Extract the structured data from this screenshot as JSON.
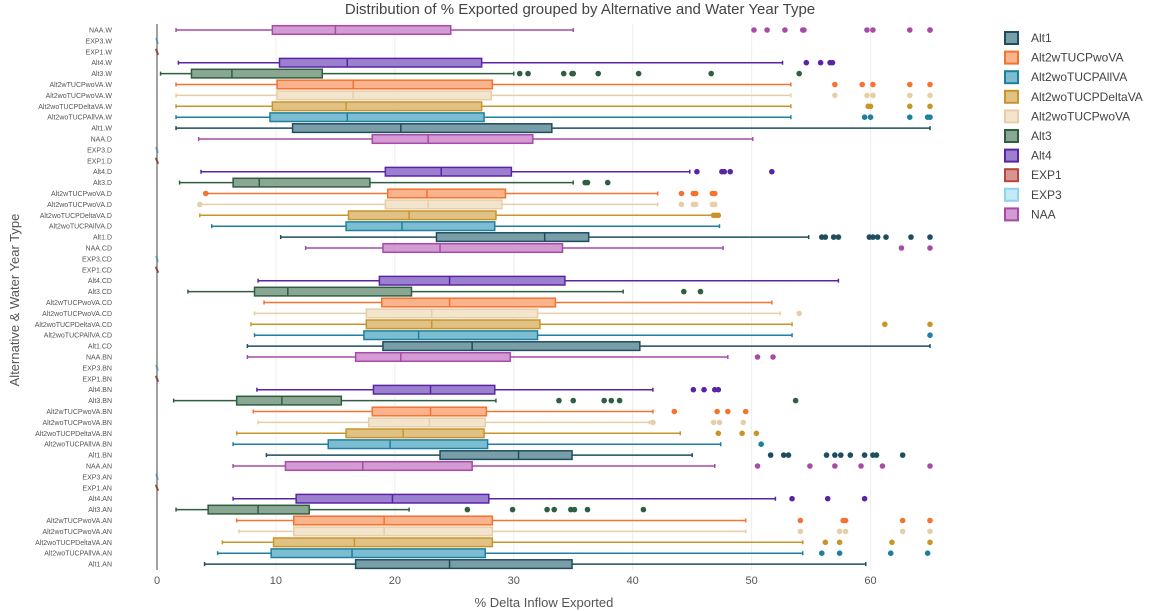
{
  "chart_data": {
    "type": "box",
    "orientation": "horizontal",
    "title": "Distribution of % Exported grouped by Alternative and Water Year Type",
    "xlabel": "% Delta Inflow Exported",
    "ylabel": "Alternative & Water Year Type",
    "xlim": [
      0,
      65
    ],
    "xticks": [
      0,
      10,
      20,
      30,
      40,
      50,
      60
    ],
    "grid": true,
    "legend_position": "top-right",
    "legend": [
      "Alt1",
      "Alt2wTUCPwoVA",
      "Alt2woTUCPAllVA",
      "Alt2woTUCPDeltaVA",
      "Alt2woTUCPwoVA",
      "Alt3",
      "Alt4",
      "EXP1",
      "EXP3",
      "NAA"
    ],
    "series_colors": {
      "Alt1": "#1e4d5e",
      "Alt2wTUCPwoVA": "#f37331",
      "Alt2woTUCPAllVA": "#1e7f9e",
      "Alt2woTUCPDeltaVA": "#c8952b",
      "Alt2woTUCPwoVA": "#e6cfa8",
      "Alt3": "#2f5f40",
      "Alt4": "#5b24a3",
      "EXP1": "#b5473f",
      "EXP3": "#8fd3ee",
      "NAA": "#a64ca6"
    },
    "series_fills": {
      "Alt1": "#7a9ea8",
      "Alt2wTUCPwoVA": "#f9b48e",
      "Alt2woTUCPAllVA": "#7dbdd2",
      "Alt2woTUCPDeltaVA": "#e2c184",
      "Alt2woTUCPwoVA": "#f2e4cd",
      "Alt3": "#8aa794",
      "Alt4": "#9c80d0",
      "EXP1": "#d99590",
      "EXP3": "#c5e9f6",
      "NAA": "#d39ad3"
    },
    "categories": [
      "NAA.W",
      "EXP3.W",
      "EXP1.W",
      "Alt4.W",
      "Alt3.W",
      "Alt2wTUCPwoVA.W",
      "Alt2woTUCPwoVA.W",
      "Alt2woTUCPDeltaVA.W",
      "Alt2woTUCPAllVA.W",
      "Alt1.W",
      "NAA.D",
      "EXP3.D",
      "EXP1.D",
      "Alt4.D",
      "Alt3.D",
      "Alt2wTUCPwoVA.D",
      "Alt2woTUCPwoVA.D",
      "Alt2woTUCPDeltaVA.D",
      "Alt2woTUCPAllVA.D",
      "Alt1.D",
      "NAA.CD",
      "EXP3.CD",
      "EXP1.CD",
      "Alt4.CD",
      "Alt3.CD",
      "Alt2wTUCPwoVA.CD",
      "Alt2woTUCPwoVA.CD",
      "Alt2woTUCPDeltaVA.CD",
      "Alt2woTUCPAllVA.CD",
      "Alt1.CD",
      "NAA.BN",
      "EXP3.BN",
      "EXP1.BN",
      "Alt4.BN",
      "Alt3.BN",
      "Alt2wTUCPwoVA.BN",
      "Alt2woTUCPwoVA.BN",
      "Alt2woTUCPDeltaVA.BN",
      "Alt2woTUCPAllVA.BN",
      "Alt1.BN",
      "NAA.AN",
      "EXP3.AN",
      "EXP1.AN",
      "Alt4.AN",
      "Alt3.AN",
      "Alt2wTUCPwoVA.AN",
      "Alt2woTUCPwoVA.AN",
      "Alt2woTUCPDeltaVA.AN",
      "Alt2woTUCPAllVA.AN",
      "Alt1.AN"
    ],
    "boxes": [
      {
        "label": "NAA.W",
        "series": "NAA",
        "min": 1.6,
        "q1": 9.7,
        "median": 15.0,
        "q3": 24.7,
        "max": 35.0,
        "outliers": [
          50.2,
          51.3,
          52.8,
          54.3,
          54.4,
          59.7,
          60.2,
          63.3,
          65.0,
          65.0
        ]
      },
      {
        "label": "EXP3.W",
        "series": "EXP3",
        "min": 0,
        "q1": 0,
        "median": 0,
        "q3": 0,
        "max": 0,
        "outliers": []
      },
      {
        "label": "EXP1.W",
        "series": "EXP1",
        "min": 0,
        "q1": 0,
        "median": 0,
        "q3": 0,
        "max": 0,
        "outliers": []
      },
      {
        "label": "Alt4.W",
        "series": "Alt4",
        "min": 1.8,
        "q1": 10.3,
        "median": 16.0,
        "q3": 27.3,
        "max": 52.6,
        "outliers": [
          54.6,
          55.8,
          56.6,
          56.8
        ]
      },
      {
        "label": "Alt3.W",
        "series": "Alt3",
        "min": 0.3,
        "q1": 2.9,
        "median": 6.3,
        "q3": 13.9,
        "max": 30.0,
        "outliers": [
          30.5,
          31.2,
          34.2,
          34.9,
          35.0,
          37.1,
          40.5,
          46.6,
          54.0
        ]
      },
      {
        "label": "Alt2wTUCPwoVA.W",
        "series": "Alt2wTUCPwoVA",
        "min": 1.6,
        "q1": 10.1,
        "median": 16.5,
        "q3": 28.2,
        "max": 53.3,
        "outliers": [
          57.0,
          59.3,
          60.2,
          63.3,
          65.0
        ]
      },
      {
        "label": "Alt2woTUCPwoVA.W",
        "series": "Alt2woTUCPwoVA",
        "min": 1.6,
        "q1": 10.1,
        "median": 16.5,
        "q3": 28.1,
        "max": 53.3,
        "outliers": [
          57.0,
          59.7,
          60.2,
          63.3,
          65.0
        ]
      },
      {
        "label": "Alt2woTUCPDeltaVA.W",
        "series": "Alt2woTUCPDeltaVA",
        "min": 1.6,
        "q1": 9.7,
        "median": 15.9,
        "q3": 27.3,
        "max": 53.3,
        "outliers": [
          59.8,
          60.0,
          63.3,
          65.0
        ]
      },
      {
        "label": "Alt2woTUCPAllVA.W",
        "series": "Alt2woTUCPAllVA",
        "min": 1.6,
        "q1": 9.5,
        "median": 16.0,
        "q3": 27.5,
        "max": 53.3,
        "outliers": [
          59.5,
          60.0,
          63.3,
          64.8,
          65.0
        ]
      },
      {
        "label": "Alt1.W",
        "series": "Alt1",
        "min": 1.6,
        "q1": 11.4,
        "median": 20.5,
        "q3": 33.2,
        "max": 65.0,
        "outliers": []
      },
      {
        "label": "NAA.D",
        "series": "NAA",
        "min": 3.5,
        "q1": 18.1,
        "median": 22.8,
        "q3": 31.6,
        "max": 50.1,
        "outliers": []
      },
      {
        "label": "EXP3.D",
        "series": "EXP3",
        "min": 0,
        "q1": 0,
        "median": 0,
        "q3": 0,
        "max": 0,
        "outliers": []
      },
      {
        "label": "EXP1.D",
        "series": "EXP1",
        "min": 0,
        "q1": 0,
        "median": 0,
        "q3": 0,
        "max": 0,
        "outliers": []
      },
      {
        "label": "Alt4.D",
        "series": "Alt4",
        "min": 3.7,
        "q1": 19.2,
        "median": 23.9,
        "q3": 29.8,
        "max": 44.8,
        "outliers": [
          45.4,
          47.5,
          47.7,
          48.2,
          51.7
        ]
      },
      {
        "label": "Alt3.D",
        "series": "Alt3",
        "min": 1.9,
        "q1": 6.4,
        "median": 8.6,
        "q3": 17.9,
        "max": 35.0,
        "outliers": [
          36.0,
          36.2,
          37.9
        ]
      },
      {
        "label": "Alt2wTUCPwoVA.D",
        "series": "Alt2wTUCPwoVA",
        "min": 4.1,
        "q1": 19.4,
        "median": 22.7,
        "q3": 29.3,
        "max": 42.1,
        "outliers": [
          4.1,
          44.1,
          45.1,
          45.3,
          46.7,
          46.9
        ]
      },
      {
        "label": "Alt2woTUCPwoVA.D",
        "series": "Alt2woTUCPwoVA",
        "min": 3.6,
        "q1": 19.2,
        "median": 22.8,
        "q3": 29.0,
        "max": 42.1,
        "outliers": [
          3.6,
          44.1,
          45.1,
          45.3,
          46.7,
          46.9
        ]
      },
      {
        "label": "Alt2woTUCPDeltaVA.D",
        "series": "Alt2woTUCPDeltaVA",
        "min": 3.6,
        "q1": 16.1,
        "median": 21.2,
        "q3": 28.5,
        "max": 46.7,
        "outliers": [
          46.8,
          47.0,
          47.2
        ]
      },
      {
        "label": "Alt2woTUCPAllVA.D",
        "series": "Alt2woTUCPAllVA",
        "min": 4.6,
        "q1": 15.9,
        "median": 20.6,
        "q3": 28.4,
        "max": 47.3,
        "outliers": []
      },
      {
        "label": "Alt1.D",
        "series": "Alt1",
        "min": 10.4,
        "q1": 23.5,
        "median": 32.6,
        "q3": 36.3,
        "max": 54.8,
        "outliers": [
          55.9,
          56.2,
          56.9,
          57.3,
          59.9,
          60.2,
          60.6,
          61.3,
          63.4,
          65.0
        ]
      },
      {
        "label": "NAA.CD",
        "series": "NAA",
        "min": 12.5,
        "q1": 19.0,
        "median": 23.8,
        "q3": 34.1,
        "max": 47.6,
        "outliers": [
          62.6,
          65.0
        ]
      },
      {
        "label": "EXP3.CD",
        "series": "EXP3",
        "min": 0,
        "q1": 0,
        "median": 0,
        "q3": 0,
        "max": 0,
        "outliers": []
      },
      {
        "label": "EXP1.CD",
        "series": "EXP1",
        "min": 0,
        "q1": 0,
        "median": 0,
        "q3": 0,
        "max": 0,
        "outliers": []
      },
      {
        "label": "Alt4.CD",
        "series": "Alt4",
        "min": 8.5,
        "q1": 18.7,
        "median": 24.6,
        "q3": 34.3,
        "max": 57.3,
        "outliers": []
      },
      {
        "label": "Alt3.CD",
        "series": "Alt3",
        "min": 2.6,
        "q1": 8.2,
        "median": 11.0,
        "q3": 21.4,
        "max": 39.2,
        "outliers": [
          44.3,
          45.7
        ]
      },
      {
        "label": "Alt2wTUCPwoVA.CD",
        "series": "Alt2wTUCPwoVA",
        "min": 9.0,
        "q1": 18.9,
        "median": 24.6,
        "q3": 33.5,
        "max": 51.7,
        "outliers": []
      },
      {
        "label": "Alt2woTUCPwoVA.CD",
        "series": "Alt2woTUCPwoVA",
        "min": 8.2,
        "q1": 17.6,
        "median": 23.1,
        "q3": 32.0,
        "max": 52.4,
        "outliers": [
          54.0
        ]
      },
      {
        "label": "Alt2woTUCPDeltaVA.CD",
        "series": "Alt2woTUCPDeltaVA",
        "min": 7.9,
        "q1": 17.6,
        "median": 23.1,
        "q3": 32.2,
        "max": 53.4,
        "outliers": [
          61.2,
          65.0
        ]
      },
      {
        "label": "Alt2woTUCPAllVA.CD",
        "series": "Alt2woTUCPAllVA",
        "min": 8.2,
        "q1": 17.4,
        "median": 22.0,
        "q3": 32.0,
        "max": 53.4,
        "outliers": [
          65.0
        ]
      },
      {
        "label": "Alt1.CD",
        "series": "Alt1",
        "min": 7.6,
        "q1": 19.0,
        "median": 26.5,
        "q3": 40.6,
        "max": 65.0,
        "outliers": []
      },
      {
        "label": "NAA.BN",
        "series": "NAA",
        "min": 7.6,
        "q1": 16.7,
        "median": 20.5,
        "q3": 29.7,
        "max": 48.0,
        "outliers": [
          50.5,
          51.8
        ]
      },
      {
        "label": "EXP3.BN",
        "series": "EXP3",
        "min": 0,
        "q1": 0,
        "median": 0,
        "q3": 0,
        "max": 0,
        "outliers": []
      },
      {
        "label": "EXP1.BN",
        "series": "EXP1",
        "min": 0,
        "q1": 0,
        "median": 0,
        "q3": 0,
        "max": 0,
        "outliers": []
      },
      {
        "label": "Alt4.BN",
        "series": "Alt4",
        "min": 8.4,
        "q1": 18.2,
        "median": 23.0,
        "q3": 28.4,
        "max": 41.7,
        "outliers": [
          45.1,
          46.0,
          46.9,
          47.2
        ]
      },
      {
        "label": "Alt3.BN",
        "series": "Alt3",
        "min": 1.4,
        "q1": 6.7,
        "median": 10.5,
        "q3": 15.5,
        "max": 28.5,
        "outliers": [
          33.8,
          35.0,
          37.6,
          38.2,
          38.9,
          53.7
        ]
      },
      {
        "label": "Alt2wTUCPwoVA.BN",
        "series": "Alt2wTUCPwoVA",
        "min": 8.1,
        "q1": 18.1,
        "median": 23.0,
        "q3": 27.7,
        "max": 41.7,
        "outliers": [
          43.5,
          47.1,
          48.0,
          49.5
        ]
      },
      {
        "label": "Alt2woTUCPwoVA.BN",
        "series": "Alt2woTUCPwoVA",
        "min": 8.5,
        "q1": 17.8,
        "median": 22.9,
        "q3": 27.6,
        "max": 41.4,
        "outliers": [
          41.7,
          46.8,
          47.3,
          49.3
        ]
      },
      {
        "label": "Alt2woTUCPDeltaVA.BN",
        "series": "Alt2woTUCPDeltaVA",
        "min": 6.7,
        "q1": 15.9,
        "median": 20.7,
        "q3": 27.5,
        "max": 44.0,
        "outliers": [
          47.2,
          49.2,
          50.4
        ]
      },
      {
        "label": "Alt2woTUCPAllVA.BN",
        "series": "Alt2woTUCPAllVA",
        "min": 6.4,
        "q1": 14.4,
        "median": 19.6,
        "q3": 27.8,
        "max": 47.4,
        "outliers": [
          50.8
        ]
      },
      {
        "label": "Alt1.BN",
        "series": "Alt1",
        "min": 9.2,
        "q1": 23.8,
        "median": 30.4,
        "q3": 34.9,
        "max": 45.0,
        "outliers": [
          51.6,
          52.7,
          53.1,
          56.3,
          57.0,
          57.5,
          58.3,
          59.5,
          60.2,
          60.5,
          62.7
        ]
      },
      {
        "label": "NAA.AN",
        "series": "NAA",
        "min": 6.4,
        "q1": 10.8,
        "median": 17.3,
        "q3": 26.5,
        "max": 46.9,
        "outliers": [
          50.5,
          54.9,
          57.0,
          59.2,
          61.0,
          65.0
        ]
      },
      {
        "label": "EXP3.AN",
        "series": "EXP3",
        "min": 0,
        "q1": 0,
        "median": 0,
        "q3": 0,
        "max": 0,
        "outliers": []
      },
      {
        "label": "EXP1.AN",
        "series": "EXP1",
        "min": 0,
        "q1": 0,
        "median": 0,
        "q3": 0,
        "max": 0,
        "outliers": []
      },
      {
        "label": "Alt4.AN",
        "series": "Alt4",
        "min": 6.4,
        "q1": 11.7,
        "median": 19.8,
        "q3": 27.9,
        "max": 52.0,
        "outliers": [
          53.4,
          56.4,
          59.5
        ]
      },
      {
        "label": "Alt3.AN",
        "series": "Alt3",
        "min": 1.6,
        "q1": 4.3,
        "median": 8.5,
        "q3": 12.8,
        "max": 21.2,
        "outliers": [
          26.1,
          29.9,
          32.8,
          33.4,
          34.8,
          35.1,
          36.2,
          40.9
        ]
      },
      {
        "label": "Alt2wTUCPwoVA.AN",
        "series": "Alt2wTUCPwoVA",
        "min": 6.7,
        "q1": 11.5,
        "median": 19.1,
        "q3": 28.2,
        "max": 49.5,
        "outliers": [
          54.1,
          57.7,
          57.9,
          62.7,
          65.0
        ]
      },
      {
        "label": "Alt2woTUCPwoVA.AN",
        "series": "Alt2woTUCPwoVA",
        "min": 6.9,
        "q1": 11.5,
        "median": 19.1,
        "q3": 28.2,
        "max": 49.5,
        "outliers": [
          54.1,
          57.4,
          57.9,
          62.7,
          65.0
        ]
      },
      {
        "label": "Alt2woTUCPDeltaVA.AN",
        "series": "Alt2woTUCPDeltaVA",
        "min": 5.5,
        "q1": 9.8,
        "median": 16.6,
        "q3": 28.2,
        "max": 54.3,
        "outliers": [
          56.2,
          57.4,
          61.8,
          65.0
        ]
      },
      {
        "label": "Alt2woTUCPAllVA.AN",
        "series": "Alt2woTUCPAllVA",
        "min": 5.1,
        "q1": 9.6,
        "median": 16.4,
        "q3": 27.6,
        "max": 54.3,
        "outliers": [
          55.9,
          57.4,
          61.7,
          64.8
        ]
      },
      {
        "label": "Alt1.AN",
        "series": "Alt1",
        "min": 4.0,
        "q1": 16.7,
        "median": 24.6,
        "q3": 34.9,
        "max": 59.6,
        "outliers": []
      }
    ]
  }
}
